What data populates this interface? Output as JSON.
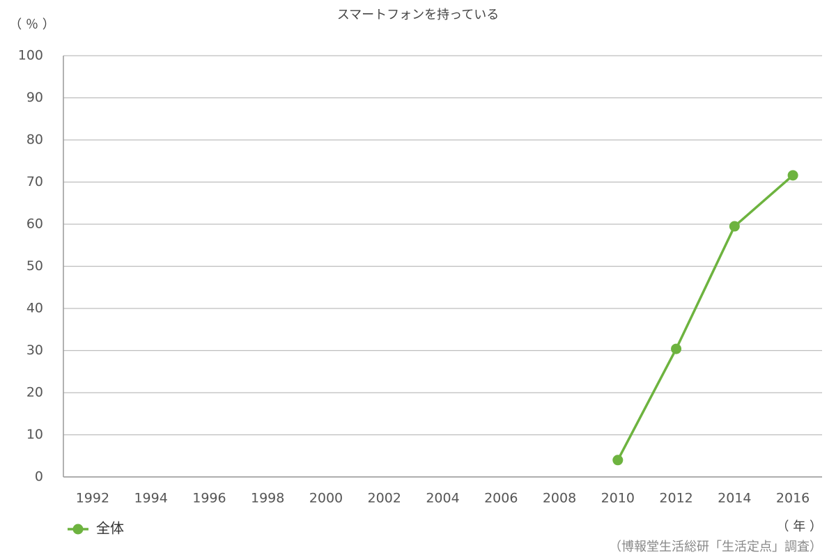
{
  "chart_data": {
    "type": "line",
    "title": "スマートフォンを持っている",
    "y_label": "（ ％ ）",
    "x_label": "（ 年 ）",
    "source": "（博報堂生活総研「生活定点」調査）",
    "categories": [
      "1992",
      "1994",
      "1996",
      "1998",
      "2000",
      "2002",
      "2004",
      "2006",
      "2008",
      "2010",
      "2012",
      "2014",
      "2016"
    ],
    "series": [
      {
        "name": "全体",
        "color": "#6db33f",
        "values": [
          null,
          null,
          null,
          null,
          null,
          null,
          null,
          null,
          null,
          4.0,
          30.4,
          59.5,
          71.6
        ]
      }
    ],
    "ylim": [
      0,
      100
    ],
    "yticks": [
      0,
      10,
      20,
      30,
      40,
      50,
      60,
      70,
      80,
      90,
      100
    ],
    "grid": true,
    "legend": "bottom-left"
  }
}
